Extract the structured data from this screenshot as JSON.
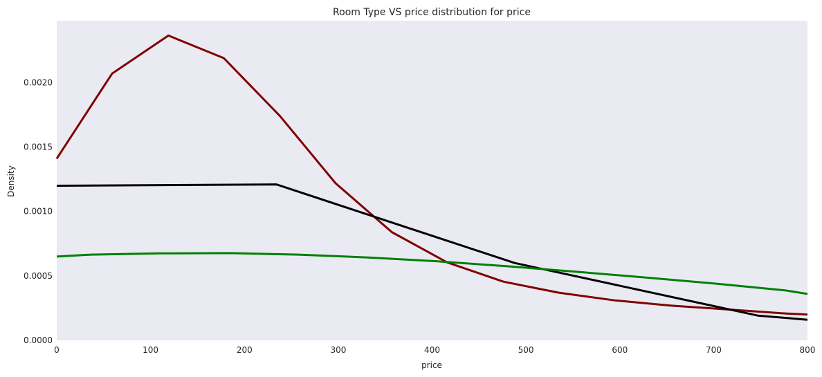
{
  "chart_data": {
    "type": "line",
    "title": "Room Type VS price distribution for price",
    "xlabel": "price",
    "ylabel": "Density",
    "xlim": [
      0,
      800
    ],
    "ylim": [
      0,
      0.00248
    ],
    "grid": false,
    "background": "#eaeaf2",
    "x_ticks": [
      {
        "value": 0,
        "label": "0"
      },
      {
        "value": 100,
        "label": "100"
      },
      {
        "value": 200,
        "label": "200"
      },
      {
        "value": 300,
        "label": "300"
      },
      {
        "value": 400,
        "label": "400"
      },
      {
        "value": 500,
        "label": "500"
      },
      {
        "value": 600,
        "label": "600"
      },
      {
        "value": 700,
        "label": "700"
      },
      {
        "value": 800,
        "label": "800"
      }
    ],
    "y_ticks": [
      {
        "value": 0,
        "label": "0.0000"
      },
      {
        "value": 0.0005,
        "label": "0.0005"
      },
      {
        "value": 0.001,
        "label": "0.0010"
      },
      {
        "value": 0.0015,
        "label": "0.0015"
      },
      {
        "value": 0.002,
        "label": "0.0020"
      }
    ],
    "series": [
      {
        "color": "#800000",
        "points": [
          [
            0,
            0.00141
          ],
          [
            59,
            0.00207
          ],
          [
            119,
            0.002365
          ],
          [
            178,
            0.00219
          ],
          [
            238,
            0.00174
          ],
          [
            297,
            0.00122
          ],
          [
            357,
            0.00084
          ],
          [
            416,
            0.000605
          ],
          [
            476,
            0.000455
          ],
          [
            535,
            0.00037
          ],
          [
            595,
            0.00031
          ],
          [
            654,
            0.00027
          ],
          [
            714,
            0.00024
          ],
          [
            773,
            0.00021
          ],
          [
            800,
            0.0002
          ]
        ]
      },
      {
        "color": "#000000",
        "points": [
          [
            0,
            0.0012
          ],
          [
            234,
            0.00121
          ],
          [
            488,
            0.0006
          ],
          [
            747,
            0.000192
          ],
          [
            800,
            0.00016
          ]
        ]
      },
      {
        "color": "#008000",
        "points": [
          [
            0,
            0.00065
          ],
          [
            36,
            0.000665
          ],
          [
            110,
            0.000675
          ],
          [
            184,
            0.000677
          ],
          [
            258,
            0.000665
          ],
          [
            332,
            0.000643
          ],
          [
            406,
            0.000613
          ],
          [
            480,
            0.000575
          ],
          [
            554,
            0.000532
          ],
          [
            628,
            0.000487
          ],
          [
            702,
            0.00044
          ],
          [
            776,
            0.000388
          ],
          [
            800,
            0.00036
          ]
        ]
      }
    ]
  }
}
